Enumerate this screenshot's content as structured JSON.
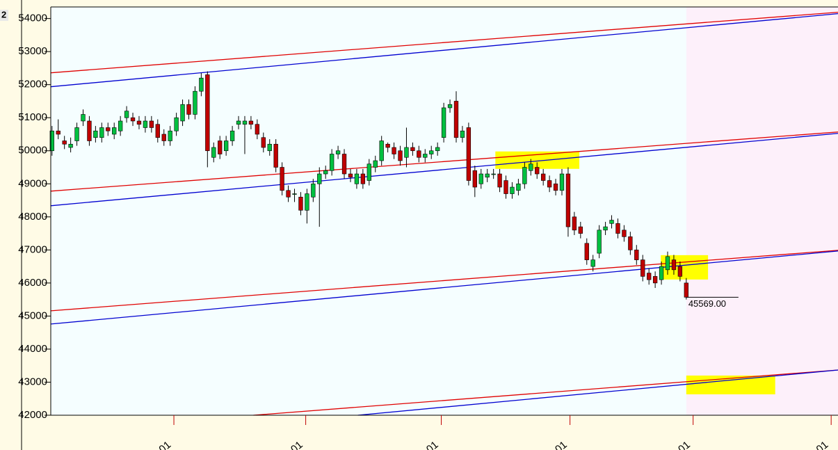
{
  "chart_data": {
    "type": "candlestick",
    "corner_label": "2",
    "last_label": "45569.00",
    "up_color": "#00c040",
    "down_color": "#c00000",
    "xlim": [
      -0.2,
      126.4
    ],
    "ylim": [
      42000,
      54350
    ],
    "yticks": [
      42000,
      43000,
      44000,
      45000,
      46000,
      47000,
      48000,
      49000,
      50000,
      51000,
      52000,
      53000,
      54000
    ],
    "xticks": [
      {
        "value": 19.6,
        "label": "01"
      },
      {
        "value": 40.8,
        "label": "01"
      },
      {
        "value": 62.6,
        "label": "01"
      },
      {
        "value": 83.3,
        "label": "01"
      },
      {
        "value": 103.1,
        "label": "01"
      },
      {
        "value": 125.3,
        "label": "01"
      }
    ],
    "shaded_from": 102,
    "ohlc": [
      [
        50000,
        50750,
        49850,
        50600
      ],
      [
        50600,
        50950,
        50350,
        50500
      ],
      [
        50300,
        50450,
        50050,
        50200
      ],
      [
        50100,
        50400,
        49950,
        50200
      ],
      [
        50300,
        50850,
        50150,
        50700
      ],
      [
        50900,
        51250,
        50750,
        51100
      ],
      [
        50900,
        51050,
        50150,
        50300
      ],
      [
        50400,
        50750,
        50250,
        50600
      ],
      [
        50400,
        50850,
        50250,
        50700
      ],
      [
        50700,
        50850,
        50450,
        50600
      ],
      [
        50500,
        50850,
        50350,
        50700
      ],
      [
        50600,
        51050,
        50450,
        50900
      ],
      [
        51000,
        51350,
        50850,
        51200
      ],
      [
        51000,
        51150,
        50750,
        50900
      ],
      [
        50900,
        51050,
        50650,
        50800
      ],
      [
        50700,
        51050,
        50550,
        50900
      ],
      [
        50900,
        51050,
        50550,
        50700
      ],
      [
        50800,
        50950,
        50250,
        50400
      ],
      [
        50500,
        50650,
        50150,
        50300
      ],
      [
        50300,
        50750,
        50150,
        50600
      ],
      [
        50600,
        51150,
        50450,
        51000
      ],
      [
        50900,
        51550,
        50750,
        51400
      ],
      [
        51400,
        51550,
        50950,
        51100
      ],
      [
        51100,
        51950,
        50950,
        51800
      ],
      [
        51800,
        52350,
        51650,
        52200
      ],
      [
        52300,
        52400,
        49500,
        50000
      ],
      [
        49800,
        50250,
        49650,
        50100
      ],
      [
        50300,
        50450,
        49750,
        49900
      ],
      [
        50000,
        50450,
        49850,
        50300
      ],
      [
        50300,
        50750,
        50150,
        50600
      ],
      [
        50800,
        51050,
        50650,
        50900
      ],
      [
        50800,
        51050,
        49900,
        50900
      ],
      [
        50900,
        51050,
        50650,
        50800
      ],
      [
        50800,
        50950,
        50350,
        50500
      ],
      [
        50400,
        50550,
        49950,
        50100
      ],
      [
        50000,
        50350,
        49850,
        50200
      ],
      [
        50200,
        50350,
        49350,
        49500
      ],
      [
        49500,
        49650,
        48650,
        48800
      ],
      [
        48800,
        48950,
        48450,
        48600
      ],
      [
        48700,
        48850,
        48450,
        48700
      ],
      [
        48600,
        48750,
        48050,
        48200
      ],
      [
        48200,
        48850,
        47800,
        48700
      ],
      [
        48600,
        49150,
        48450,
        49000
      ],
      [
        49000,
        49500,
        47700,
        49300
      ],
      [
        49300,
        49550,
        49150,
        49400
      ],
      [
        49400,
        50050,
        49250,
        49900
      ],
      [
        49900,
        50150,
        49750,
        50000
      ],
      [
        49900,
        50050,
        49150,
        49300
      ],
      [
        49300,
        49450,
        49050,
        49200
      ],
      [
        49000,
        49450,
        48850,
        49300
      ],
      [
        49300,
        49450,
        48850,
        49000
      ],
      [
        49100,
        49750,
        48950,
        49600
      ],
      [
        49500,
        49850,
        49350,
        49700
      ],
      [
        49700,
        50450,
        49550,
        50300
      ],
      [
        50200,
        50250,
        49950,
        50100
      ],
      [
        50100,
        50250,
        49750,
        49900
      ],
      [
        50000,
        50150,
        49550,
        49700
      ],
      [
        49800,
        50700,
        49500,
        50100
      ],
      [
        50100,
        50250,
        49850,
        50000
      ],
      [
        50000,
        50150,
        49650,
        49800
      ],
      [
        49800,
        50050,
        49650,
        49900
      ],
      [
        49900,
        50150,
        49750,
        50000
      ],
      [
        50000,
        50250,
        49850,
        50100
      ],
      [
        50400,
        51450,
        50250,
        51300
      ],
      [
        51300,
        51550,
        51150,
        51400
      ],
      [
        51500,
        51800,
        50250,
        50400
      ],
      [
        50400,
        50750,
        50250,
        50600
      ],
      [
        50700,
        50850,
        48950,
        49100
      ],
      [
        49400,
        49550,
        48600,
        48900
      ],
      [
        49000,
        49450,
        48850,
        49300
      ],
      [
        49200,
        49450,
        49050,
        49300
      ],
      [
        49300,
        49450,
        49150,
        49300
      ],
      [
        49300,
        49450,
        48750,
        48900
      ],
      [
        49100,
        49250,
        48550,
        48700
      ],
      [
        48700,
        49050,
        48550,
        48900
      ],
      [
        48800,
        49150,
        48650,
        49000
      ],
      [
        49000,
        49650,
        48850,
        49500
      ],
      [
        49400,
        49750,
        49250,
        49600
      ],
      [
        49500,
        49650,
        49150,
        49300
      ],
      [
        49300,
        49450,
        48950,
        49100
      ],
      [
        49100,
        49250,
        48750,
        48900
      ],
      [
        49000,
        49150,
        48650,
        48800
      ],
      [
        48800,
        49450,
        48650,
        49300
      ],
      [
        49300,
        49500,
        47400,
        47700
      ],
      [
        48000,
        48150,
        47450,
        47600
      ],
      [
        47700,
        47850,
        47350,
        47500
      ],
      [
        47200,
        47350,
        46550,
        46700
      ],
      [
        46500,
        46850,
        46350,
        46700
      ],
      [
        46900,
        47750,
        46750,
        47600
      ],
      [
        47600,
        47850,
        47450,
        47700
      ],
      [
        47800,
        48050,
        47650,
        47900
      ],
      [
        47800,
        47950,
        47350,
        47500
      ],
      [
        47600,
        47750,
        47250,
        47400
      ],
      [
        47400,
        47550,
        46850,
        47000
      ],
      [
        47000,
        47150,
        46550,
        46700
      ],
      [
        46700,
        46850,
        46050,
        46200
      ],
      [
        46300,
        46450,
        45950,
        46100
      ],
      [
        46200,
        46350,
        45850,
        46000
      ],
      [
        46100,
        46650,
        45950,
        46500
      ],
      [
        46400,
        46950,
        46250,
        46800
      ],
      [
        46700,
        46850,
        46250,
        46400
      ],
      [
        46500,
        46650,
        46050,
        46200
      ],
      [
        46000,
        46150,
        45500,
        45569
      ]
    ],
    "lines": [
      {
        "color": "#e00000",
        "x": [
          -0.2,
          126.4
        ],
        "values": [
          52358,
          54190
        ]
      },
      {
        "color": "#0000d0",
        "x": [
          -0.2,
          126.4
        ],
        "values": [
          51937,
          54147
        ]
      },
      {
        "color": "#e00000",
        "x": [
          -0.2,
          126.4
        ],
        "values": [
          48779,
          50568
        ]
      },
      {
        "color": "#0000d0",
        "x": [
          -0.2,
          126.4
        ],
        "values": [
          48337,
          50526
        ]
      },
      {
        "color": "#e00000",
        "x": [
          -0.2,
          126.4
        ],
        "values": [
          45158,
          46989
        ]
      },
      {
        "color": "#0000d0",
        "x": [
          -0.2,
          126.4
        ],
        "values": [
          44758,
          46968
        ]
      },
      {
        "color": "#e00000",
        "x": [
          32.4,
          126.4
        ],
        "values": [
          42000,
          43368
        ]
      },
      {
        "color": "#0000d0",
        "x": [
          49.2,
          126.4
        ],
        "values": [
          42000,
          43368
        ]
      }
    ],
    "highlights": [
      {
        "x": [
          71.3,
          84.8
        ],
        "values": [
          49453,
          49979
        ]
      },
      {
        "x": [
          97.9,
          105.5
        ],
        "values": [
          46105,
          46842
        ]
      },
      {
        "x": [
          102,
          116.3
        ],
        "values": [
          42632,
          43200
        ]
      }
    ]
  }
}
